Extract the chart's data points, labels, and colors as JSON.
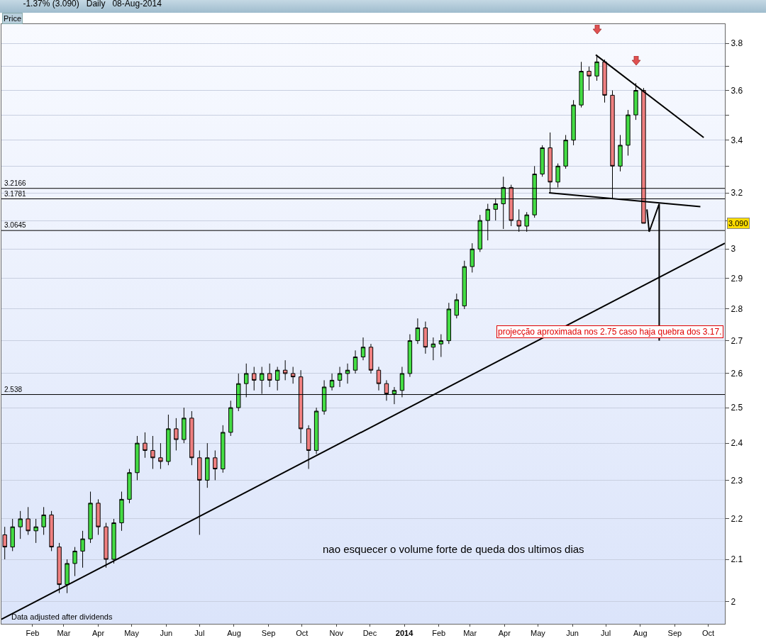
{
  "chart_data": {
    "type": "candlestick",
    "title": "-1.37% (3.090)   Daily   08-Aug-2014",
    "x": [
      "2013-01-07",
      "2013-01-14",
      "2013-01-21",
      "2013-01-28",
      "2013-02-04",
      "2013-02-11",
      "2013-02-18",
      "2013-02-25",
      "2013-03-04",
      "2013-03-11",
      "2013-03-18",
      "2013-03-25",
      "2013-04-01",
      "2013-04-08",
      "2013-04-15",
      "2013-04-22",
      "2013-04-29",
      "2013-05-06",
      "2013-05-13",
      "2013-05-20",
      "2013-05-27",
      "2013-06-03",
      "2013-06-10",
      "2013-06-17",
      "2013-06-24",
      "2013-07-01",
      "2013-07-08",
      "2013-07-15",
      "2013-07-22",
      "2013-07-29",
      "2013-08-05",
      "2013-08-12",
      "2013-08-19",
      "2013-08-26",
      "2013-09-02",
      "2013-09-09",
      "2013-09-16",
      "2013-09-23",
      "2013-09-30",
      "2013-10-07",
      "2013-10-14",
      "2013-10-21",
      "2013-10-28",
      "2013-11-04",
      "2013-11-11",
      "2013-11-18",
      "2013-11-25",
      "2013-12-02",
      "2013-12-09",
      "2013-12-16",
      "2013-12-23",
      "2013-12-30",
      "2014-01-06",
      "2014-01-13",
      "2014-01-20",
      "2014-01-27",
      "2014-02-03",
      "2014-02-10",
      "2014-02-17",
      "2014-02-24",
      "2014-03-03",
      "2014-03-10",
      "2014-03-17",
      "2014-03-24",
      "2014-03-31",
      "2014-04-07",
      "2014-04-14",
      "2014-04-21",
      "2014-04-28",
      "2014-05-05",
      "2014-05-12",
      "2014-05-19",
      "2014-05-26",
      "2014-06-02",
      "2014-06-09",
      "2014-06-16",
      "2014-06-23",
      "2014-06-30",
      "2014-07-07",
      "2014-07-14",
      "2014-07-21",
      "2014-07-28",
      "2014-08-04"
    ],
    "ohlc": [
      [
        2.16,
        2.18,
        2.1,
        2.13
      ],
      [
        2.13,
        2.2,
        2.12,
        2.18
      ],
      [
        2.18,
        2.22,
        2.15,
        2.2
      ],
      [
        2.2,
        2.23,
        2.16,
        2.17
      ],
      [
        2.17,
        2.2,
        2.14,
        2.18
      ],
      [
        2.18,
        2.23,
        2.16,
        2.21
      ],
      [
        2.21,
        2.22,
        2.12,
        2.13
      ],
      [
        2.13,
        2.14,
        2.02,
        2.04
      ],
      [
        2.04,
        2.1,
        2.02,
        2.09
      ],
      [
        2.09,
        2.13,
        2.06,
        2.12
      ],
      [
        2.12,
        2.17,
        2.08,
        2.15
      ],
      [
        2.15,
        2.27,
        2.14,
        2.24
      ],
      [
        2.24,
        2.25,
        2.16,
        2.18
      ],
      [
        2.18,
        2.19,
        2.08,
        2.1
      ],
      [
        2.1,
        2.2,
        2.09,
        2.19
      ],
      [
        2.19,
        2.27,
        2.17,
        2.25
      ],
      [
        2.25,
        2.33,
        2.24,
        2.32
      ],
      [
        2.32,
        2.42,
        2.3,
        2.4
      ],
      [
        2.4,
        2.43,
        2.36,
        2.38
      ],
      [
        2.38,
        2.42,
        2.33,
        2.36
      ],
      [
        2.36,
        2.4,
        2.33,
        2.35
      ],
      [
        2.35,
        2.48,
        2.34,
        2.44
      ],
      [
        2.44,
        2.47,
        2.38,
        2.41
      ],
      [
        2.41,
        2.5,
        2.4,
        2.47
      ],
      [
        2.47,
        2.49,
        2.34,
        2.36
      ],
      [
        2.36,
        2.38,
        2.16,
        2.3
      ],
      [
        2.3,
        2.4,
        2.28,
        2.36
      ],
      [
        2.36,
        2.38,
        2.3,
        2.33
      ],
      [
        2.33,
        2.45,
        2.32,
        2.43
      ],
      [
        2.43,
        2.52,
        2.42,
        2.5
      ],
      [
        2.5,
        2.6,
        2.49,
        2.57
      ],
      [
        2.57,
        2.63,
        2.53,
        2.6
      ],
      [
        2.6,
        2.62,
        2.55,
        2.58
      ],
      [
        2.58,
        2.62,
        2.54,
        2.6
      ],
      [
        2.6,
        2.63,
        2.56,
        2.58
      ],
      [
        2.58,
        2.62,
        2.55,
        2.61
      ],
      [
        2.61,
        2.64,
        2.58,
        2.6
      ],
      [
        2.6,
        2.62,
        2.57,
        2.59
      ],
      [
        2.59,
        2.61,
        2.4,
        2.44
      ],
      [
        2.44,
        2.45,
        2.33,
        2.38
      ],
      [
        2.38,
        2.5,
        2.37,
        2.49
      ],
      [
        2.49,
        2.58,
        2.48,
        2.56
      ],
      [
        2.56,
        2.6,
        2.55,
        2.58
      ],
      [
        2.58,
        2.62,
        2.56,
        2.6
      ],
      [
        2.6,
        2.63,
        2.57,
        2.61
      ],
      [
        2.61,
        2.67,
        2.6,
        2.65
      ],
      [
        2.65,
        2.71,
        2.64,
        2.68
      ],
      [
        2.68,
        2.69,
        2.6,
        2.61
      ],
      [
        2.61,
        2.62,
        2.55,
        2.57
      ],
      [
        2.57,
        2.58,
        2.52,
        2.54
      ],
      [
        2.54,
        2.56,
        2.51,
        2.55
      ],
      [
        2.55,
        2.62,
        2.53,
        2.6
      ],
      [
        2.6,
        2.72,
        2.59,
        2.7
      ],
      [
        2.7,
        2.77,
        2.69,
        2.74
      ],
      [
        2.74,
        2.76,
        2.66,
        2.68
      ],
      [
        2.68,
        2.71,
        2.64,
        2.69
      ],
      [
        2.69,
        2.72,
        2.65,
        2.7
      ],
      [
        2.7,
        2.82,
        2.69,
        2.8
      ],
      [
        2.78,
        2.85,
        2.77,
        2.83
      ],
      [
        2.81,
        2.96,
        2.8,
        2.94
      ],
      [
        2.94,
        3.02,
        2.92,
        3.0
      ],
      [
        3.0,
        3.12,
        2.99,
        3.1
      ],
      [
        3.1,
        3.16,
        3.03,
        3.14
      ],
      [
        3.14,
        3.18,
        3.1,
        3.16
      ],
      [
        3.16,
        3.26,
        3.07,
        3.22
      ],
      [
        3.22,
        3.23,
        3.08,
        3.1
      ],
      [
        3.1,
        3.14,
        3.06,
        3.08
      ],
      [
        3.08,
        3.13,
        3.06,
        3.12
      ],
      [
        3.12,
        3.3,
        3.11,
        3.27
      ],
      [
        3.27,
        3.38,
        3.26,
        3.37
      ],
      [
        3.37,
        3.43,
        3.2,
        3.24
      ],
      [
        3.24,
        3.31,
        3.22,
        3.3
      ],
      [
        3.3,
        3.42,
        3.29,
        3.4
      ],
      [
        3.4,
        3.56,
        3.38,
        3.54
      ],
      [
        3.54,
        3.72,
        3.53,
        3.68
      ],
      [
        3.68,
        3.7,
        3.6,
        3.66
      ],
      [
        3.66,
        3.75,
        3.64,
        3.72
      ],
      [
        3.72,
        3.73,
        3.55,
        3.58
      ],
      [
        3.58,
        3.6,
        3.18,
        3.3
      ],
      [
        3.3,
        3.42,
        3.28,
        3.38
      ],
      [
        3.38,
        3.52,
        3.34,
        3.5
      ],
      [
        3.5,
        3.63,
        3.48,
        3.6
      ],
      [
        3.6,
        3.61,
        3.09,
        3.09
      ]
    ],
    "colors": [
      "#f08080",
      "#44dd44",
      "#44dd44",
      "#f08080",
      "#44dd44",
      "#44dd44",
      "#f08080",
      "#f08080",
      "#44dd44",
      "#44dd44",
      "#44dd44",
      "#44dd44",
      "#f08080",
      "#f08080",
      "#44dd44",
      "#44dd44",
      "#44dd44",
      "#44dd44",
      "#f08080",
      "#f08080",
      "#f08080",
      "#44dd44",
      "#f08080",
      "#44dd44",
      "#f08080",
      "#f08080",
      "#44dd44",
      "#f08080",
      "#44dd44",
      "#44dd44",
      "#44dd44",
      "#44dd44",
      "#f08080",
      "#44dd44",
      "#f08080",
      "#44dd44",
      "#f08080",
      "#f08080",
      "#f08080",
      "#f08080",
      "#44dd44",
      "#44dd44",
      "#44dd44",
      "#44dd44",
      "#44dd44",
      "#44dd44",
      "#44dd44",
      "#f08080",
      "#f08080",
      "#f08080",
      "#44dd44",
      "#44dd44",
      "#44dd44",
      "#44dd44",
      "#f08080",
      "#44dd44",
      "#44dd44",
      "#44dd44",
      "#44dd44",
      "#44dd44",
      "#44dd44",
      "#44dd44",
      "#44dd44",
      "#44dd44",
      "#44dd44",
      "#f08080",
      "#f08080",
      "#44dd44",
      "#44dd44",
      "#44dd44",
      "#f08080",
      "#44dd44",
      "#44dd44",
      "#44dd44",
      "#44dd44",
      "#f08080",
      "#44dd44",
      "#f08080",
      "#f08080",
      "#44dd44",
      "#44dd44",
      "#44dd44",
      "#f08080"
    ],
    "series": [
      {
        "type": "line",
        "color": "#000000",
        "x": [
          "2013-01-04",
          "2014-10-16"
        ],
        "values": [
          1.96,
          3.02
        ]
      },
      {
        "type": "line",
        "color": "#000000",
        "x": [
          "2014-05-11",
          "2014-09-24"
        ],
        "values": [
          3.2,
          3.15
        ]
      },
      {
        "type": "line",
        "color": "#000000",
        "x": [
          "2014-06-22",
          "2014-09-27"
        ],
        "values": [
          3.75,
          3.41
        ]
      },
      {
        "type": "line",
        "color": "#000000",
        "x": [
          "2014-08-07",
          "2014-08-09",
          "2014-08-18",
          "2014-08-18"
        ],
        "values": [
          3.14,
          3.06,
          3.16,
          2.7
        ]
      }
    ],
    "ref_lines": [
      {
        "axis": "y",
        "value": 3.2166,
        "label": "3.2166",
        "color": "#000000"
      },
      {
        "axis": "y",
        "value": 3.1781,
        "label": "3.1781",
        "color": "#000000"
      },
      {
        "axis": "y",
        "value": 3.0645,
        "label": "3.0645",
        "color": "#000000"
      },
      {
        "axis": "y",
        "value": 2.538,
        "label": "2.538",
        "color": "#000000"
      }
    ],
    "annotations": [
      "Price",
      "projecção aproximada nos 2.75 caso haja quebra dos 3.17.",
      "nao esquecer o volume forte de queda dos ultimos dias",
      "Data adjusted after dividends",
      "3.090"
    ],
    "log": true,
    "ylim": [
      1.95,
      3.885
    ],
    "yticks": [
      2,
      2.1,
      2.2,
      2.3,
      2.4,
      2.5,
      2.6,
      2.7,
      2.8,
      2.9,
      3,
      {
        "value": 3.1,
        "label": null
      },
      3.2,
      {
        "value": 3.3,
        "label": null
      },
      3.4,
      {
        "value": 3.5,
        "label": null
      },
      3.6,
      {
        "value": 3.7,
        "label": null
      },
      3.8
    ],
    "xlim": [
      "2013-01-04",
      "2014-10-16"
    ],
    "xticks": [
      {
        "value": "2013-02-01",
        "label": "Feb"
      },
      {
        "value": "2013-03-01",
        "label": "Mar"
      },
      {
        "value": "2013-04-01",
        "label": "Apr"
      },
      {
        "value": "2013-05-01",
        "label": "May"
      },
      {
        "value": "2013-06-01",
        "label": "Jun"
      },
      {
        "value": "2013-07-01",
        "label": "Jul"
      },
      {
        "value": "2013-08-01",
        "label": "Aug"
      },
      {
        "value": "2013-09-01",
        "label": "Sep"
      },
      {
        "value": "2013-10-01",
        "label": "Oct"
      },
      {
        "value": "2013-11-01",
        "label": "Nov"
      },
      {
        "value": "2013-12-01",
        "label": "Dec"
      },
      {
        "value": "2014-01-01",
        "label": "2014"
      },
      {
        "value": "2014-02-01",
        "label": "Feb"
      },
      {
        "value": "2014-03-01",
        "label": "Mar"
      },
      {
        "value": "2014-04-01",
        "label": "Apr"
      },
      {
        "value": "2014-05-01",
        "label": "May"
      },
      {
        "value": "2014-06-01",
        "label": "Jun"
      },
      {
        "value": "2014-07-01",
        "label": "Jul"
      },
      {
        "value": "2014-08-01",
        "label": "Aug"
      },
      {
        "value": "2014-09-01",
        "label": "Sep"
      },
      {
        "value": "2014-10-01",
        "label": "Oct"
      }
    ],
    "grid": "y"
  }
}
